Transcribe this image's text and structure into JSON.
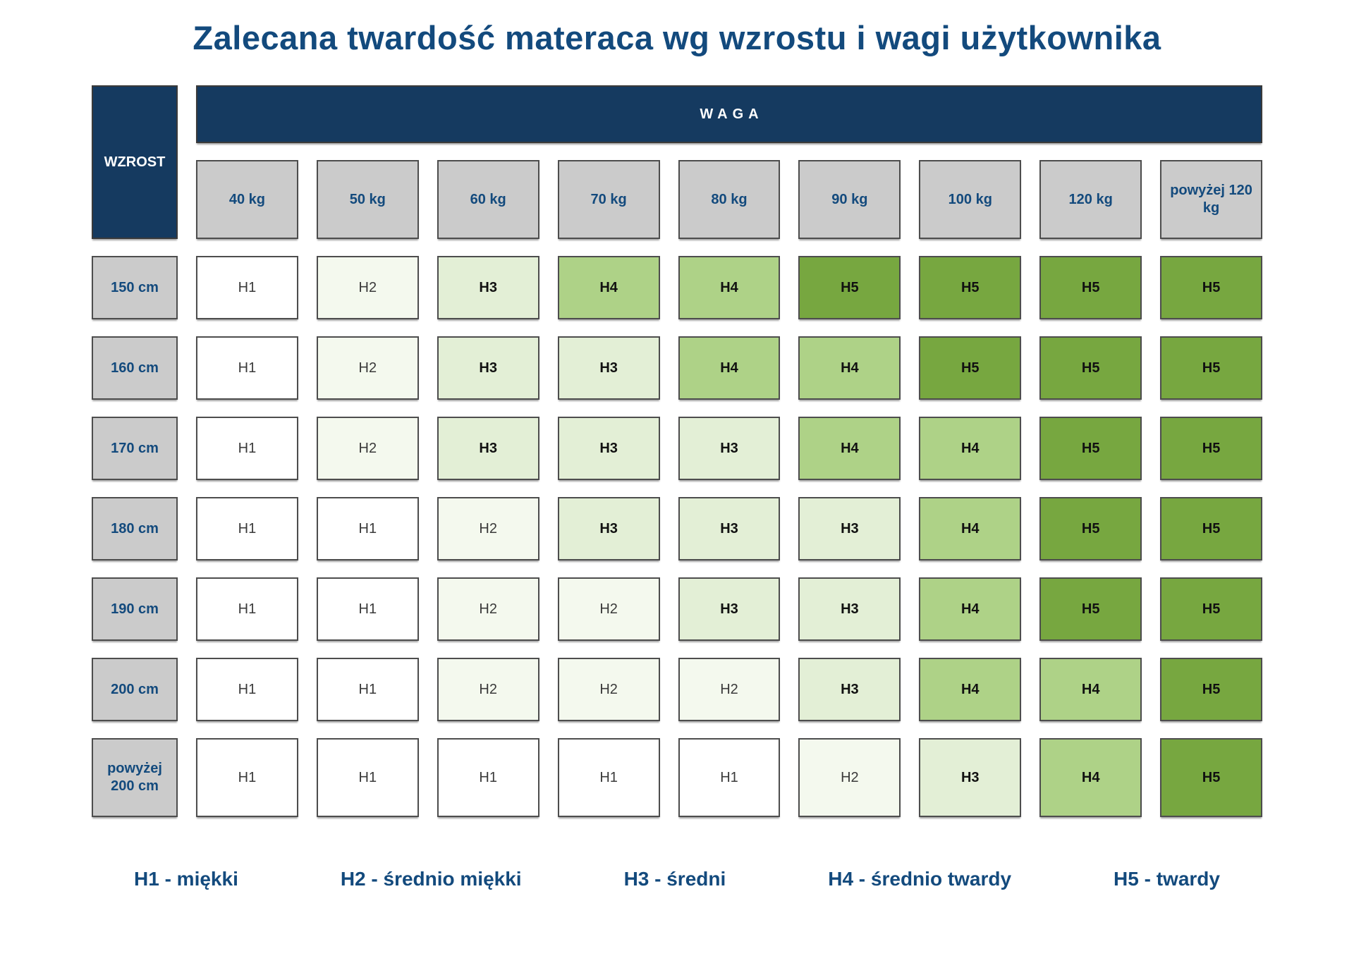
{
  "title": "Zalecana twardość materaca wg wzrostu i wagi użytkownika",
  "colors": {
    "navy_header": "#153a60",
    "navy_text": "#134a7d",
    "gray_header": "#cbcbcb",
    "cell_border": "#4d4d4d",
    "levels": {
      "H1": "#ffffff",
      "H2": "#f4f9ee",
      "H3": "#e3efd6",
      "H4": "#aed287",
      "H5": "#77a740"
    },
    "bold_levels": [
      "H3",
      "H4",
      "H5"
    ]
  },
  "table": {
    "corner_label": "WZROST",
    "weight_header": "WAGA",
    "weight_columns": [
      "40 kg",
      "50 kg",
      "60 kg",
      "70 kg",
      "80 kg",
      "90 kg",
      "100 kg",
      "120 kg",
      "powyżej 120 kg"
    ],
    "rows": [
      {
        "height": "150 cm",
        "cells": [
          "H1",
          "H2",
          "H3",
          "H4",
          "H4",
          "H5",
          "H5",
          "H5",
          "H5"
        ]
      },
      {
        "height": "160 cm",
        "cells": [
          "H1",
          "H2",
          "H3",
          "H3",
          "H4",
          "H4",
          "H5",
          "H5",
          "H5"
        ]
      },
      {
        "height": "170 cm",
        "cells": [
          "H1",
          "H2",
          "H3",
          "H3",
          "H3",
          "H4",
          "H4",
          "H5",
          "H5"
        ]
      },
      {
        "height": "180 cm",
        "cells": [
          "H1",
          "H1",
          "H2",
          "H3",
          "H3",
          "H3",
          "H4",
          "H5",
          "H5"
        ]
      },
      {
        "height": "190 cm",
        "cells": [
          "H1",
          "H1",
          "H2",
          "H2",
          "H3",
          "H3",
          "H4",
          "H5",
          "H5"
        ]
      },
      {
        "height": "200 cm",
        "cells": [
          "H1",
          "H1",
          "H2",
          "H2",
          "H2",
          "H3",
          "H4",
          "H4",
          "H5"
        ]
      },
      {
        "height": "powyżej 200 cm",
        "cells": [
          "H1",
          "H1",
          "H1",
          "H1",
          "H1",
          "H2",
          "H3",
          "H4",
          "H5"
        ]
      }
    ]
  },
  "legend": [
    "H1 - miękki",
    "H2 - średnio miękki",
    "H3 - średni",
    "H4 - średnio twardy",
    "H5 - twardy"
  ],
  "chart_data": {
    "type": "heatmap",
    "title": "Zalecana twardość materaca wg wzrostu i wagi użytkownika",
    "x_label": "WAGA",
    "y_label": "WZROST",
    "x": [
      "40 kg",
      "50 kg",
      "60 kg",
      "70 kg",
      "80 kg",
      "90 kg",
      "100 kg",
      "120 kg",
      "powyżej 120 kg"
    ],
    "y": [
      "150 cm",
      "160 cm",
      "170 cm",
      "180 cm",
      "190 cm",
      "200 cm",
      "powyżej 200 cm"
    ],
    "values": [
      [
        "H1",
        "H2",
        "H3",
        "H4",
        "H4",
        "H5",
        "H5",
        "H5",
        "H5"
      ],
      [
        "H1",
        "H2",
        "H3",
        "H3",
        "H4",
        "H4",
        "H5",
        "H5",
        "H5"
      ],
      [
        "H1",
        "H2",
        "H3",
        "H3",
        "H3",
        "H4",
        "H4",
        "H5",
        "H5"
      ],
      [
        "H1",
        "H1",
        "H2",
        "H3",
        "H3",
        "H3",
        "H4",
        "H5",
        "H5"
      ],
      [
        "H1",
        "H1",
        "H2",
        "H2",
        "H3",
        "H3",
        "H4",
        "H5",
        "H5"
      ],
      [
        "H1",
        "H1",
        "H2",
        "H2",
        "H2",
        "H3",
        "H4",
        "H4",
        "H5"
      ],
      [
        "H1",
        "H1",
        "H1",
        "H1",
        "H1",
        "H2",
        "H3",
        "H4",
        "H5"
      ]
    ],
    "value_scale": {
      "H1": "miękki",
      "H2": "średnio miękki",
      "H3": "średni",
      "H4": "średnio twardy",
      "H5": "twardy"
    },
    "legend_position": "bottom",
    "grid": false
  }
}
